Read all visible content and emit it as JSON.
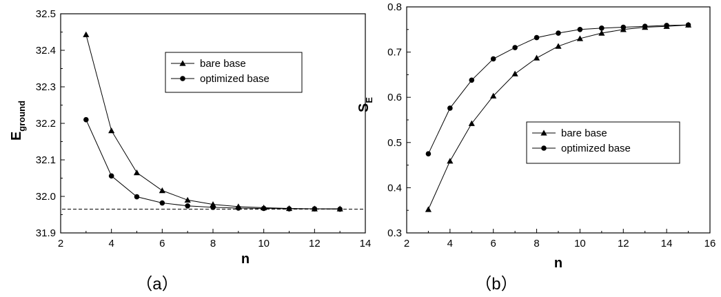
{
  "chart_data": [
    {
      "type": "line",
      "panel_label": "（a）",
      "xlabel": "n",
      "ylabel": "E",
      "ylabel_sub": "ground",
      "xlim": [
        2,
        14
      ],
      "ylim": [
        31.9,
        32.5
      ],
      "xticks": [
        "2",
        "4",
        "6",
        "8",
        "10",
        "12",
        "14"
      ],
      "yticks": [
        "31.9",
        "32.0",
        "32.1",
        "32.2",
        "32.3",
        "32.4",
        "32.5"
      ],
      "reference_line_y": 31.965,
      "legend_position": "upper-right",
      "series": [
        {
          "name": "bare base",
          "marker": "triangle",
          "x": [
            3,
            4,
            5,
            6,
            7,
            8,
            9,
            10,
            11,
            12,
            13
          ],
          "values": [
            32.443,
            32.18,
            32.065,
            32.016,
            31.99,
            31.978,
            31.972,
            31.969,
            31.967,
            31.966,
            31.966
          ]
        },
        {
          "name": "optimized base",
          "marker": "circle",
          "x": [
            3,
            4,
            5,
            6,
            7,
            8,
            9,
            10,
            11,
            12,
            13
          ],
          "values": [
            32.21,
            32.056,
            31.999,
            31.982,
            31.974,
            31.97,
            31.968,
            31.967,
            31.966,
            31.966,
            31.965
          ]
        }
      ]
    },
    {
      "type": "line",
      "panel_label": "（b）",
      "xlabel": "n",
      "ylabel": "S",
      "ylabel_sub": "E",
      "xlim": [
        2,
        16
      ],
      "ylim": [
        0.3,
        0.8
      ],
      "xticks": [
        "2",
        "4",
        "6",
        "8",
        "10",
        "12",
        "14",
        "16"
      ],
      "yticks": [
        "0.3",
        "0.4",
        "0.5",
        "0.6",
        "0.7",
        "0.8"
      ],
      "legend_position": "center-right",
      "series": [
        {
          "name": "bare base",
          "marker": "triangle",
          "x": [
            3,
            4,
            5,
            6,
            7,
            8,
            9,
            10,
            11,
            12,
            13,
            14,
            15
          ],
          "values": [
            0.352,
            0.459,
            0.542,
            0.603,
            0.652,
            0.687,
            0.713,
            0.73,
            0.742,
            0.75,
            0.755,
            0.757,
            0.76
          ]
        },
        {
          "name": "optimized base",
          "marker": "circle",
          "x": [
            3,
            4,
            5,
            6,
            7,
            8,
            9,
            10,
            11,
            12,
            13,
            14,
            15
          ],
          "values": [
            0.475,
            0.576,
            0.638,
            0.685,
            0.71,
            0.732,
            0.742,
            0.75,
            0.753,
            0.755,
            0.757,
            0.759,
            0.76
          ]
        }
      ]
    }
  ]
}
